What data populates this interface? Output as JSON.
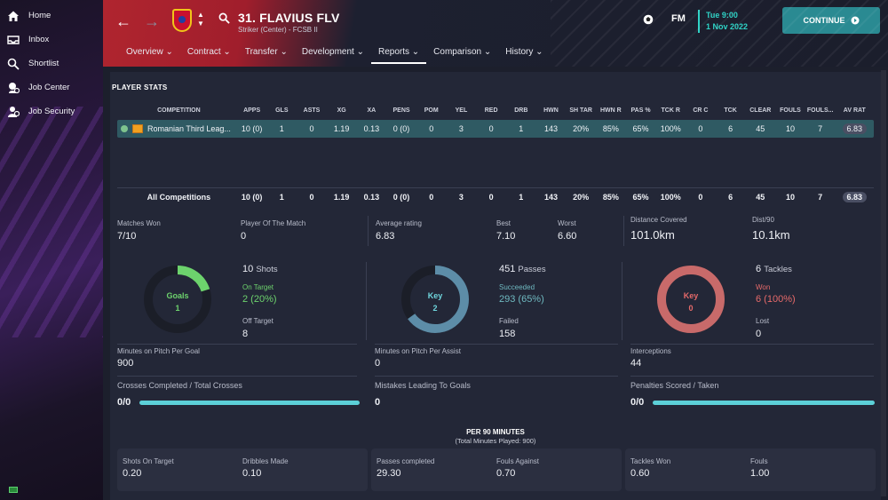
{
  "sidebar": {
    "items": [
      {
        "label": "Home"
      },
      {
        "label": "Inbox"
      },
      {
        "label": "Shortlist"
      },
      {
        "label": "Job Center"
      },
      {
        "label": "Job Security"
      }
    ]
  },
  "header": {
    "player_name": "31. FLAVIUS FLV",
    "player_sub": "Striker (Center) - FCSB II",
    "fm_label": "FM",
    "date_time": "Tue 9:00",
    "date": "1 Nov 2022",
    "continue_label": "CONTINUE",
    "tabs": [
      {
        "label": "Overview"
      },
      {
        "label": "Contract"
      },
      {
        "label": "Transfer"
      },
      {
        "label": "Development"
      },
      {
        "label": "Reports"
      },
      {
        "label": "Comparison"
      },
      {
        "label": "History"
      }
    ]
  },
  "stats": {
    "section_title": "PLAYER STATS",
    "columns": [
      "COMPETITION",
      "APPS",
      "GLS",
      "ASTS",
      "XG",
      "XA",
      "PENS",
      "POM",
      "YEL",
      "RED",
      "DRB",
      "HWN",
      "SH TAR",
      "HWN R",
      "PAS %",
      "TCK R",
      "CR C",
      "TCK",
      "CLEAR",
      "FOULS",
      "FOULS...",
      "AV RAT"
    ],
    "row": {
      "competition": "Romanian Third Leag...",
      "values": [
        "10 (0)",
        "1",
        "0",
        "1.19",
        "0.13",
        "0 (0)",
        "0",
        "3",
        "0",
        "1",
        "143",
        "20%",
        "85%",
        "65%",
        "100%",
        "0",
        "6",
        "45",
        "10",
        "7"
      ],
      "av_rat": "6.83"
    },
    "total": {
      "competition": "All Competitions",
      "values": [
        "10 (0)",
        "1",
        "0",
        "1.19",
        "0.13",
        "0 (0)",
        "0",
        "3",
        "0",
        "1",
        "143",
        "20%",
        "85%",
        "65%",
        "100%",
        "0",
        "6",
        "45",
        "10",
        "7"
      ],
      "av_rat": "6.83"
    }
  },
  "summary": {
    "matches_won_label": "Matches Won",
    "matches_won": "7/10",
    "potm_label": "Player Of The Match",
    "potm": "0",
    "avg_rating_label": "Average rating",
    "avg_rating": "6.83",
    "best_label": "Best",
    "best": "7.10",
    "worst_label": "Worst",
    "worst": "6.60",
    "distance_label": "Distance Covered",
    "distance": "101.0km",
    "dist90_label": "Dist/90",
    "dist90": "10.1km"
  },
  "shots": {
    "ring_title": "Goals",
    "ring_value": "1",
    "ring_fraction": 0.2,
    "count": "10",
    "count_label": "Shots",
    "on_target_label": "On Target",
    "on_target": "2 (20%)",
    "off_target_label": "Off Target",
    "off_target": "8",
    "colors": {
      "ring": "#6dd36d",
      "track": "#1b1e28"
    }
  },
  "passes": {
    "ring_title": "Key",
    "ring_value": "2",
    "ring_fraction": 0.65,
    "count": "451",
    "count_label": "Passes",
    "succeeded_label": "Succeeded",
    "succeeded": "293 (65%)",
    "failed_label": "Failed",
    "failed": "158",
    "colors": {
      "ring": "#5d8da8",
      "track": "#1b1e28"
    }
  },
  "tackles": {
    "ring_title": "Key",
    "ring_value": "0",
    "ring_fraction": 1.0,
    "count": "6",
    "count_label": "Tackles",
    "won_label": "Won",
    "won": "6 (100%)",
    "lost_label": "Lost",
    "lost": "0",
    "colors": {
      "ring": "#c86a6a",
      "track": "#1b1e28"
    }
  },
  "misc": {
    "mpg_label": "Minutes on Pitch Per Goal",
    "mpg": "900",
    "mpa_label": "Minutes on Pitch Per Assist",
    "mpa": "0",
    "interceptions_label": "Interceptions",
    "interceptions": "44",
    "crosses_label": "Crosses Completed / Total Crosses",
    "crosses": "0/0",
    "mistakes_label": "Mistakes Leading To Goals",
    "mistakes": "0",
    "penalties_label": "Penalties Scored / Taken",
    "penalties": "0/0"
  },
  "per90": {
    "title": "PER 90 MINUTES",
    "subtitle": "(Total Minutes Played: 900)",
    "shots_on_target_label": "Shots On Target",
    "shots_on_target": "0.20",
    "dribbles_label": "Dribbles Made",
    "dribbles": "0.10",
    "passes_completed_label": "Passes completed",
    "passes_completed": "29.30",
    "fouls_against_label": "Fouls Against",
    "fouls_against": "0.70",
    "tackles_won_label": "Tackles Won",
    "tackles_won": "0.60",
    "fouls_label": "Fouls",
    "fouls": "1.00"
  }
}
